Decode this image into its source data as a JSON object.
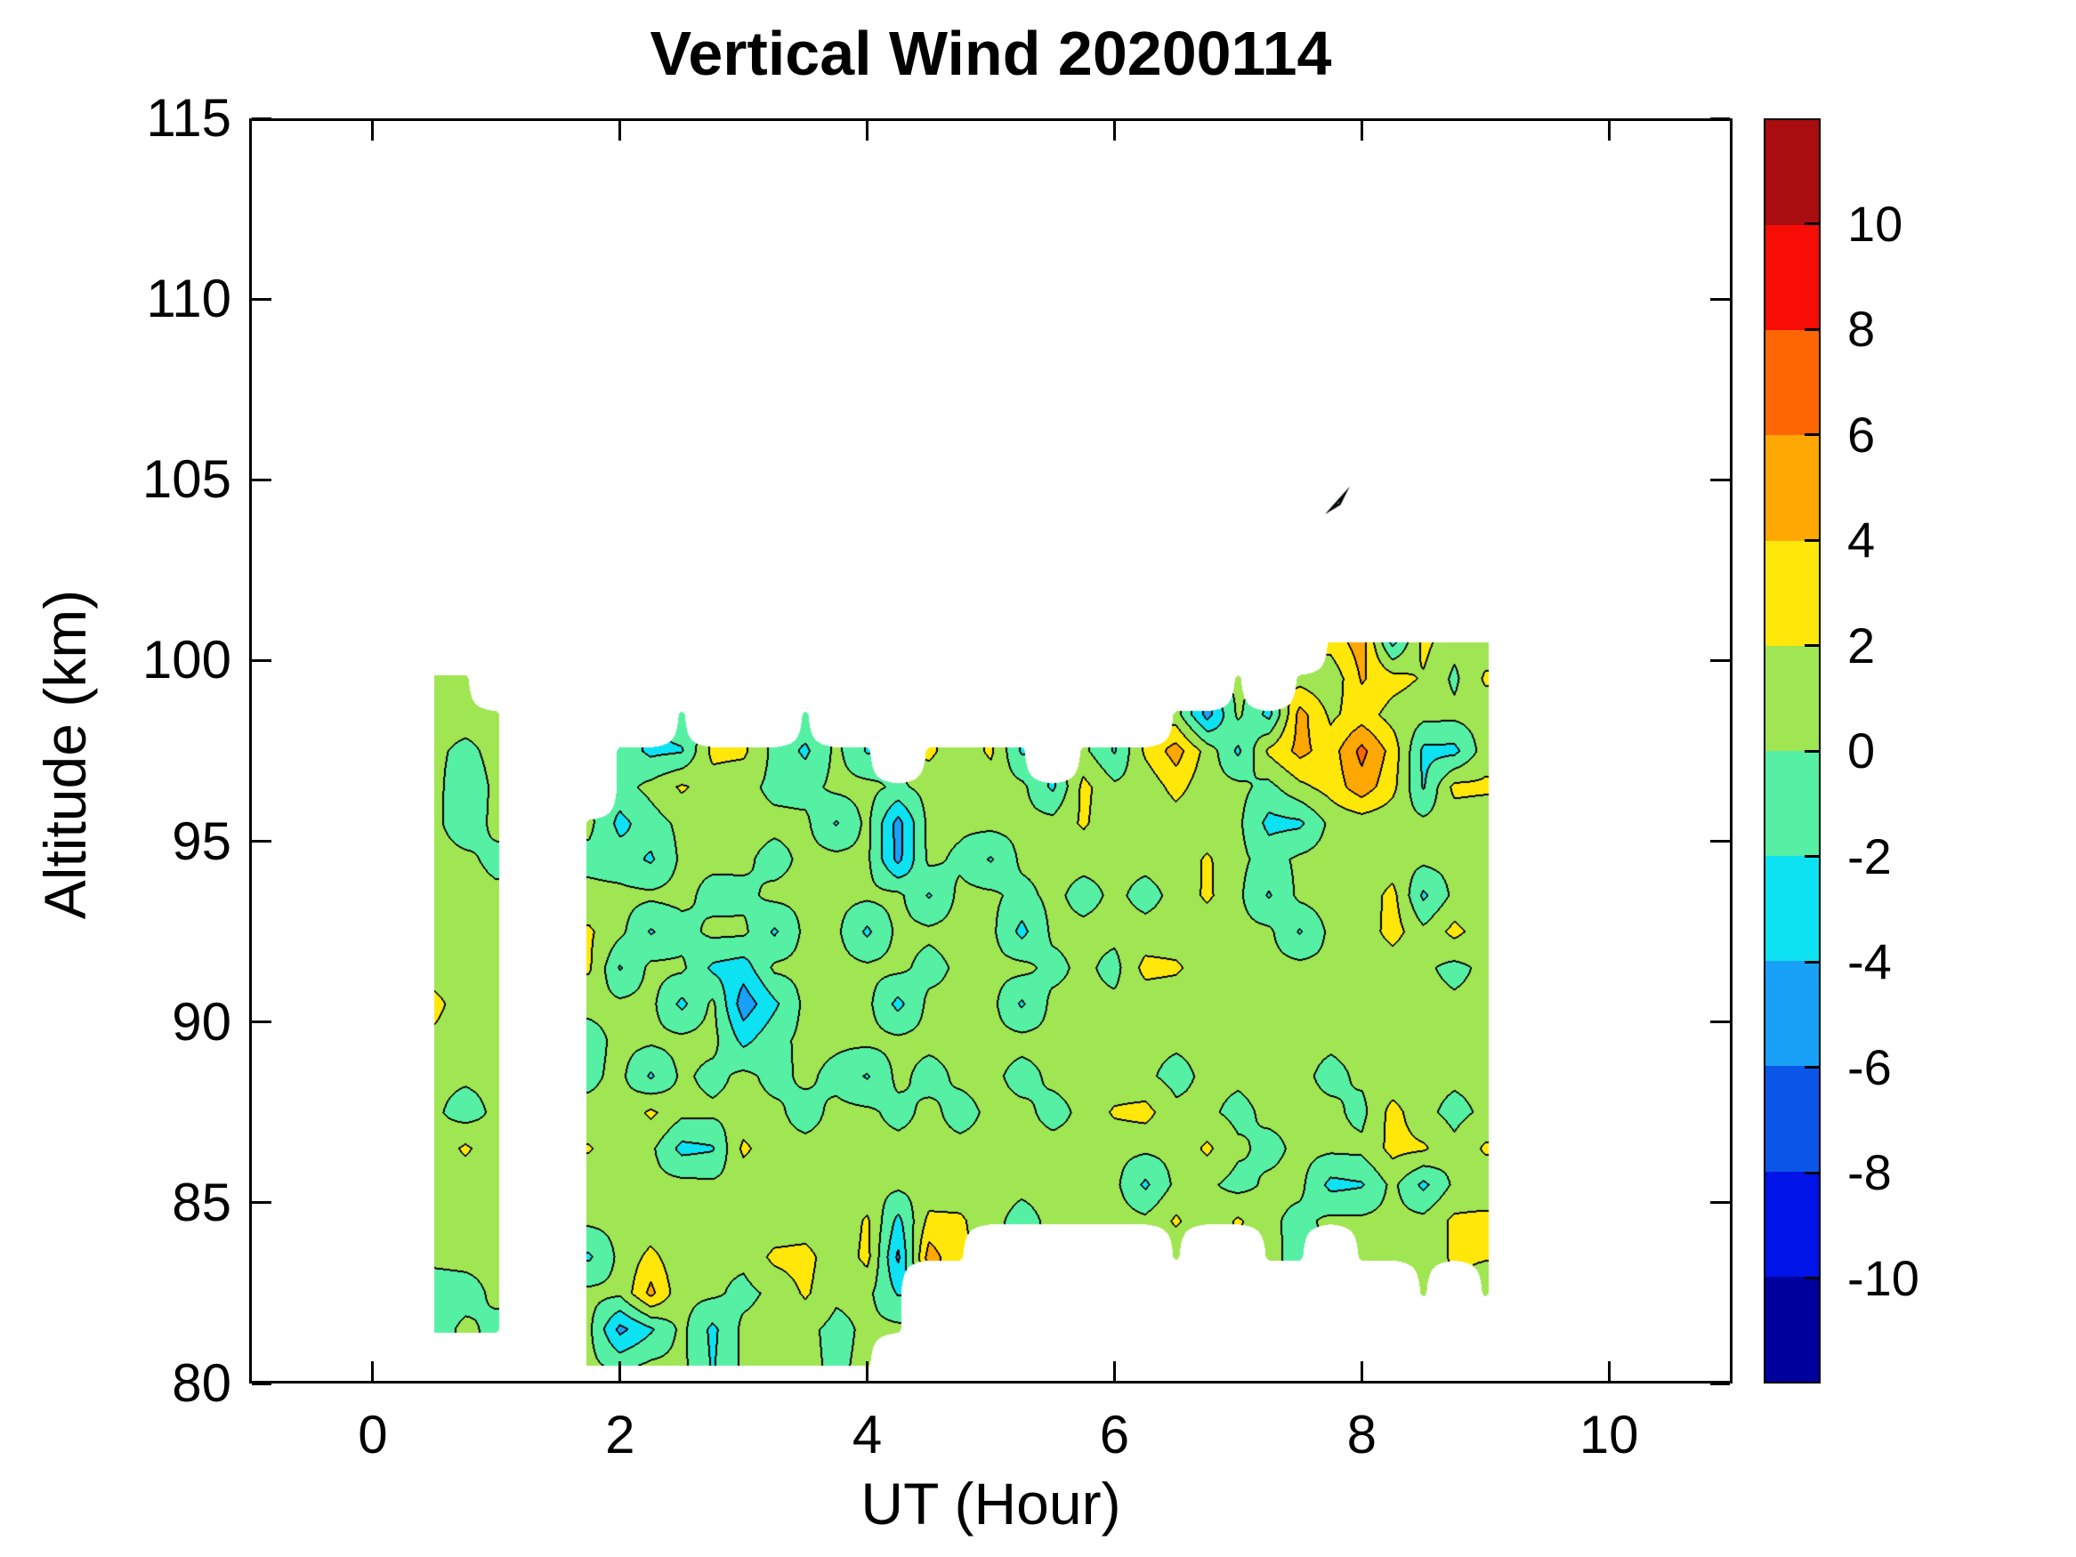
{
  "title": "Vertical Wind 20200114",
  "axes": {
    "xlabel": "UT (Hour)",
    "ylabel": "Altitude (km)",
    "xlim": [
      -1,
      11
    ],
    "ylim": [
      80,
      115
    ],
    "xticks": [
      0,
      2,
      4,
      6,
      8,
      10
    ],
    "yticks": [
      80,
      85,
      90,
      95,
      100,
      105,
      110,
      115
    ]
  },
  "colorbar": {
    "vmin": -12,
    "vmax": 12,
    "band_step": 2,
    "ticks": [
      10,
      8,
      6,
      4,
      2,
      0,
      -2,
      -4,
      -6,
      -8,
      -10
    ],
    "palette_low_to_high": [
      "#00009c",
      "#0013e8",
      "#0a56e8",
      "#19a1f7",
      "#0de2f2",
      "#55f0a4",
      "#a0e552",
      "#ffe70a",
      "#ffa702",
      "#fd6603",
      "#f80c06",
      "#a90d10"
    ]
  },
  "style": {
    "contour_line_color": "#000000",
    "axis_color": "#000000",
    "background": "#ffffff"
  },
  "chart_data": {
    "type": "heatmap",
    "subtype": "filled_contour",
    "title": "Vertical Wind 20200114",
    "xlabel": "UT (Hour)",
    "ylabel": "Altitude (km)",
    "xlim": [
      -1,
      11
    ],
    "ylim": [
      80,
      115
    ],
    "levels_step": 2,
    "grid": {
      "x_start": 0.5,
      "x_step": 0.25,
      "n_cols": 36,
      "y_start": 100.5,
      "y_step": -1,
      "n_rows": 21
    },
    "values": [
      [
        null,
        null,
        null,
        null,
        null,
        null,
        null,
        null,
        null,
        null,
        null,
        null,
        null,
        null,
        null,
        null,
        null,
        null,
        null,
        null,
        null,
        null,
        null,
        null,
        null,
        null,
        null,
        null,
        null,
        2.8,
        5.0,
        -2.6,
        2.6,
        0.6,
        0.9,
        null
      ],
      [
        0.5,
        0.4,
        null,
        null,
        null,
        null,
        null,
        null,
        null,
        null,
        null,
        null,
        null,
        null,
        null,
        null,
        null,
        null,
        null,
        null,
        null,
        null,
        null,
        null,
        null,
        null,
        0.4,
        null,
        1.2,
        0.5,
        4.2,
        2.8,
        1.8,
        -0.4,
        2.3,
        null
      ],
      [
        0.7,
        0.9,
        0.5,
        null,
        null,
        null,
        null,
        null,
        -0.6,
        null,
        null,
        null,
        -0.5,
        null,
        null,
        null,
        null,
        null,
        null,
        null,
        null,
        null,
        null,
        null,
        0.8,
        -4.8,
        0.4,
        -2.6,
        4.8,
        1.6,
        3.0,
        1.2,
        0.6,
        0.5,
        0.8,
        null
      ],
      [
        0.4,
        -0.5,
        0.6,
        null,
        null,
        null,
        -0.7,
        -2.5,
        -2.2,
        2.6,
        2.4,
        -0.6,
        -2.4,
        0.5,
        -2.2,
        null,
        2.5,
        0.6,
        2.4,
        -2.3,
        null,
        0.5,
        -2.2,
        2.4,
        4.9,
        1.2,
        -2.4,
        2.4,
        4.6,
        3.0,
        6.6,
        3.2,
        -2.5,
        -2.6,
        1.0,
        null
      ],
      [
        0.5,
        -1.2,
        0.4,
        null,
        null,
        null,
        -0.8,
        0.6,
        2.3,
        1.0,
        0.6,
        -0.5,
        -0.7,
        0.5,
        0.6,
        -0.4,
        0.7,
        0.4,
        0.8,
        0.5,
        -2.4,
        2.6,
        0.4,
        0.6,
        2.8,
        0.6,
        0.5,
        -0.6,
        1.5,
        2.8,
        5.2,
        2.6,
        -2.2,
        2.6,
        2.4,
        null
      ],
      [
        0.4,
        -1.1,
        0.5,
        null,
        null,
        0.5,
        -2.6,
        -0.9,
        0.5,
        0.4,
        0.6,
        0.5,
        0.4,
        -2.2,
        0.5,
        -4.8,
        0.6,
        0.4,
        0.6,
        0.5,
        0.7,
        2.3,
        0.5,
        0.4,
        0.8,
        0.5,
        0.4,
        -2.6,
        -2.4,
        0.5,
        0.9,
        0.6,
        0.5,
        0.7,
        0.5,
        null
      ],
      [
        0.6,
        0.4,
        -0.5,
        null,
        null,
        -0.6,
        -1.0,
        -2.3,
        0.4,
        0.5,
        0.4,
        -0.7,
        0.5,
        0.6,
        0.4,
        -4.6,
        0.5,
        -0.4,
        -2.2,
        0.4,
        0.5,
        0.6,
        0.4,
        0.5,
        0.6,
        2.3,
        0.5,
        -0.8,
        0.4,
        0.8,
        0.5,
        0.6,
        0.5,
        0.6,
        0.4,
        null
      ],
      [
        0.5,
        0.6,
        0.4,
        null,
        null,
        0.6,
        0.5,
        0.4,
        0.6,
        -0.7,
        -0.5,
        0.5,
        0.4,
        0.5,
        0.4,
        0.5,
        -2.2,
        0.5,
        0.4,
        -0.6,
        0.5,
        -0.7,
        0.4,
        -0.6,
        0.5,
        2.4,
        0.4,
        -2.2,
        0.5,
        0.9,
        0.6,
        2.7,
        -2.4,
        0.5,
        0.6,
        null
      ],
      [
        0.4,
        0.5,
        0.6,
        null,
        null,
        2.3,
        0.5,
        -2.2,
        -0.8,
        0.5,
        0.4,
        -2.3,
        0.5,
        0.4,
        -2.4,
        0.5,
        0.4,
        0.6,
        0.5,
        -2.6,
        0.4,
        0.5,
        0.6,
        0.6,
        0.5,
        0.4,
        0.5,
        0.4,
        -2.2,
        0.5,
        0.6,
        2.9,
        0.5,
        2.6,
        0.8,
        null
      ],
      [
        0.5,
        0.4,
        0.5,
        null,
        null,
        2.3,
        -2.2,
        0.5,
        0.4,
        -2.4,
        -3.0,
        0.4,
        0.5,
        0.6,
        0.4,
        0.5,
        -0.7,
        0.4,
        0.5,
        0.6,
        -0.6,
        0.5,
        -0.7,
        2.7,
        2.4,
        0.5,
        0.4,
        0.5,
        0.6,
        0.4,
        0.5,
        0.6,
        0.4,
        -0.6,
        0.5,
        null
      ],
      [
        2.8,
        0.5,
        0.4,
        null,
        null,
        0.5,
        0.4,
        0.5,
        -2.5,
        0.4,
        -5.2,
        -2.4,
        0.5,
        0.4,
        0.5,
        -2.6,
        0.5,
        0.4,
        0.6,
        -2.3,
        0.5,
        0.4,
        0.5,
        0.6,
        0.4,
        0.5,
        0.4,
        0.5,
        0.6,
        0.5,
        0.4,
        0.5,
        0.6,
        0.4,
        0.5,
        null
      ],
      [
        1.4,
        0.5,
        0.4,
        null,
        null,
        -0.7,
        0.5,
        0.4,
        0.5,
        0.6,
        -2.6,
        -0.6,
        0.5,
        0.4,
        0.5,
        0.4,
        0.5,
        0.4,
        0.5,
        0.6,
        0.4,
        0.5,
        0.4,
        0.5,
        0.4,
        0.5,
        0.6,
        0.4,
        0.5,
        0.4,
        0.5,
        0.6,
        0.5,
        0.4,
        0.5,
        null
      ],
      [
        0.5,
        0.4,
        0.5,
        null,
        null,
        -0.4,
        0.5,
        -2.3,
        0.4,
        -0.6,
        0.5,
        -0.6,
        0.4,
        -0.6,
        -2.2,
        0.5,
        -0.7,
        0.4,
        0.5,
        -0.7,
        0.4,
        0.5,
        0.6,
        0.4,
        -0.7,
        0.5,
        0.4,
        0.6,
        0.5,
        -0.6,
        0.4,
        0.5,
        0.6,
        0.4,
        0.5,
        null
      ],
      [
        0.4,
        -1.0,
        0.5,
        null,
        null,
        0.5,
        0.4,
        2.4,
        0.5,
        0.4,
        0.5,
        0.4,
        -0.7,
        0.5,
        0.4,
        -0.6,
        0.5,
        -0.7,
        0.4,
        0.5,
        -0.6,
        0.4,
        2.3,
        2.7,
        0.5,
        0.4,
        -0.6,
        0.5,
        0.4,
        0.5,
        -0.6,
        2.8,
        0.5,
        -0.6,
        0.4,
        null
      ],
      [
        0.5,
        2.4,
        0.4,
        null,
        null,
        2.2,
        0.5,
        0.4,
        -2.6,
        -2.2,
        2.5,
        0.4,
        0.5,
        0.4,
        0.5,
        0.6,
        0.4,
        0.5,
        0.4,
        0.5,
        0.6,
        0.4,
        0.5,
        0.4,
        0.5,
        2.4,
        0.4,
        -0.6,
        0.5,
        0.4,
        0.5,
        2.6,
        2.3,
        0.5,
        2.3,
        null
      ],
      [
        0.4,
        0.5,
        0.5,
        null,
        null,
        0.5,
        0.4,
        0.5,
        0.6,
        0.4,
        0.5,
        0.4,
        0.5,
        0.6,
        0.4,
        0.5,
        0.4,
        0.5,
        0.6,
        0.4,
        0.5,
        0.4,
        0.5,
        -2.4,
        0.5,
        0.4,
        -0.7,
        0.4,
        0.5,
        -2.6,
        -2.2,
        0.5,
        -2.5,
        0.4,
        0.5,
        null
      ],
      [
        0.5,
        0.4,
        0.6,
        null,
        null,
        0.4,
        0.5,
        0.6,
        0.4,
        0.5,
        0.4,
        0.5,
        0.6,
        0.4,
        2.3,
        -2.6,
        2.6,
        2.4,
        0.5,
        -0.6,
        0.4,
        0.5,
        0.8,
        0.5,
        2.3,
        0.4,
        2.3,
        0.4,
        -0.6,
        0.5,
        0.4,
        0.5,
        0.6,
        2.4,
        2.6,
        null
      ],
      [
        0.4,
        0.5,
        0.4,
        null,
        null,
        -2.3,
        0.5,
        2.6,
        0.5,
        0.4,
        0.5,
        2.5,
        2.8,
        0.5,
        2.6,
        -4.4,
        5.0,
        2.3,
        null,
        null,
        null,
        null,
        null,
        null,
        0.5,
        null,
        null,
        0.4,
        -0.5,
        null,
        0.5,
        0.4,
        0.5,
        2.4,
        2.2,
        null
      ],
      [
        -0.9,
        -0.7,
        0.4,
        null,
        null,
        0.5,
        0.4,
        4.6,
        0.5,
        0.4,
        -0.6,
        0.5,
        2.3,
        0.4,
        0.5,
        -2.2,
        null,
        null,
        null,
        null,
        null,
        null,
        null,
        null,
        null,
        null,
        null,
        null,
        null,
        null,
        null,
        null,
        0.5,
        null,
        0.4,
        null
      ],
      [
        -0.8,
        0.4,
        -0.5,
        null,
        null,
        0.4,
        -4.6,
        -2.3,
        0.5,
        -2.5,
        0.5,
        0.8,
        0.5,
        -0.6,
        0.4,
        0.5,
        null,
        null,
        null,
        null,
        null,
        null,
        null,
        null,
        null,
        null,
        null,
        null,
        null,
        null,
        null,
        null,
        null,
        null,
        null,
        null
      ],
      [
        null,
        null,
        null,
        null,
        null,
        0.5,
        -0.6,
        0.4,
        0.5,
        -2.2,
        0.4,
        0.6,
        0.5,
        -0.4,
        0.5,
        null,
        null,
        null,
        null,
        null,
        null,
        null,
        null,
        null,
        null,
        null,
        null,
        null,
        null,
        null,
        null,
        null,
        null,
        null,
        null,
        null
      ]
    ],
    "outlier_speck": {
      "x": 7.8,
      "altitude": 104.4,
      "value": -1.0
    }
  }
}
